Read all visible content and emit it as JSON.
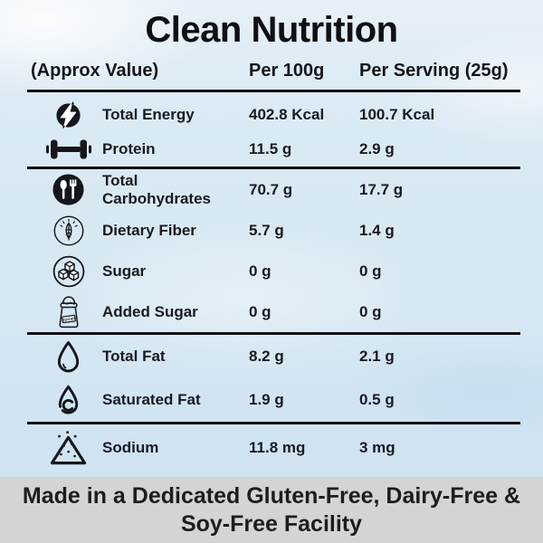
{
  "title": "Clean Nutrition",
  "header": {
    "label_col": "(Approx Value)",
    "per_100g_col": "Per 100g",
    "per_serving_col": "Per Serving (25g)"
  },
  "sections": [
    {
      "rows": [
        {
          "icon": "energy-icon",
          "label": "Total Energy",
          "per_100g": "402.8 Kcal",
          "per_serving": "100.7 Kcal"
        },
        {
          "icon": "dumbbell-icon",
          "label": "Protein",
          "per_100g": "11.5 g",
          "per_serving": "2.9 g"
        }
      ]
    },
    {
      "rows": [
        {
          "icon": "cutlery-icon",
          "label": "Total Carbohydrates",
          "per_100g": "70.7 g",
          "per_serving": "17.7 g"
        },
        {
          "icon": "leaf-icon",
          "label": "Dietary Fiber",
          "per_100g": "5.7 g",
          "per_serving": "1.4 g"
        },
        {
          "icon": "sugar-cubes-icon",
          "label": "Sugar",
          "per_100g": "0 g",
          "per_serving": "0 g"
        },
        {
          "icon": "sugar-bag-icon",
          "label": "Added Sugar",
          "per_100g": "0 g",
          "per_serving": "0 g"
        }
      ]
    },
    {
      "rows": [
        {
          "icon": "droplet-icon",
          "label": "Total Fat",
          "per_100g": "8.2 g",
          "per_serving": "2.1 g"
        },
        {
          "icon": "saturated-droplet-icon",
          "label": "Saturated Fat",
          "per_100g": "1.9 g",
          "per_serving": "0.5 g"
        }
      ]
    },
    {
      "rows": [
        {
          "icon": "salt-pile-icon",
          "label": "Sodium",
          "per_100g": "11.8 mg",
          "per_serving": "3 mg"
        }
      ]
    }
  ],
  "icon_labels": {
    "sugar_bag": "SUGAR"
  },
  "footer": {
    "text": "Made in a Dedicated Gluten-Free, Dairy-Free & Soy-Free Facility"
  },
  "colors": {
    "ink": "#15161c",
    "rule": "#101014",
    "background": "#d7e8f3",
    "footer_bg": "#d4d4d4",
    "footer_text": "#1d1d1f"
  }
}
